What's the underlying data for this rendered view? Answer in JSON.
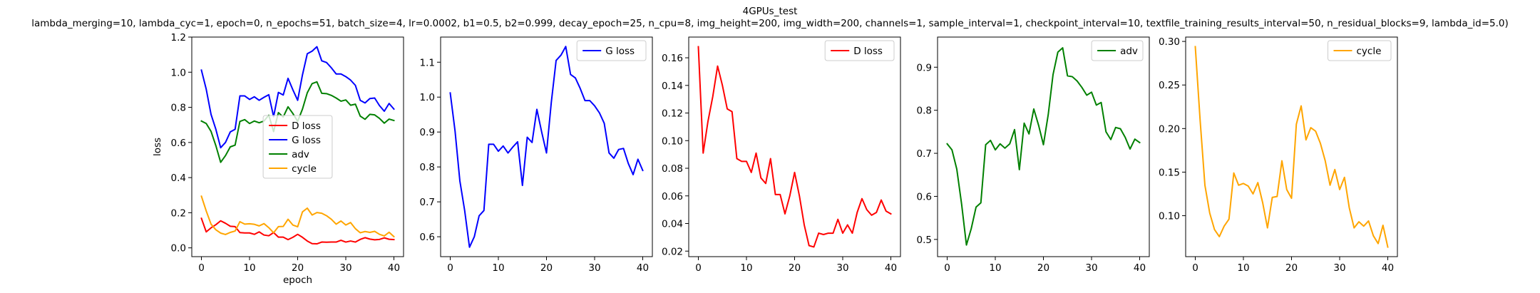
{
  "figure": {
    "title": "4GPUs_test",
    "subtitle": "lambda_merging=10, lambda_cyc=1, epoch=0, n_epochs=51, batch_size=4, lr=0.0002, b1=0.5, b2=0.999, decay_epoch=25, n_cpu=8, img_height=200, img_width=200, channels=1, sample_interval=1, checkpoint_interval=10, textfile_training_results_interval=50, n_residual_blocks=9, lambda_id=5.0)"
  },
  "colors": {
    "D loss": "#ff0000",
    "G loss": "#0000ff",
    "adv": "#008000",
    "cycle": "#ffa500"
  },
  "chart_data": [
    {
      "type": "line",
      "xlabel": "epoch",
      "ylabel": "loss",
      "xlim": [
        -2,
        42
      ],
      "ylim": [
        -0.05,
        1.2
      ],
      "xticks": [
        0,
        10,
        20,
        30,
        40
      ],
      "yticks": [
        0.0,
        0.2,
        0.4,
        0.6,
        0.8,
        1.0,
        1.2
      ],
      "ytick_labels": [
        "0.0",
        "0.2",
        "0.4",
        "0.6",
        "0.8",
        "1.0",
        "1.2"
      ],
      "legend": "center",
      "series": [
        {
          "name": "D loss",
          "ref": "D loss"
        },
        {
          "name": "G loss",
          "ref": "G loss"
        },
        {
          "name": "adv",
          "ref": "adv"
        },
        {
          "name": "cycle",
          "ref": "cycle"
        }
      ]
    },
    {
      "type": "line",
      "xlabel": "",
      "ylabel": "",
      "xlim": [
        -2,
        42
      ],
      "ylim": [
        0.543,
        1.172
      ],
      "xticks": [
        0,
        10,
        20,
        30,
        40
      ],
      "yticks": [
        0.6,
        0.7,
        0.8,
        0.9,
        1.0,
        1.1
      ],
      "ytick_labels": [
        "0.6",
        "0.7",
        "0.8",
        "0.9",
        "1.0",
        "1.1"
      ],
      "legend": "top-right",
      "series": [
        {
          "name": "G loss",
          "ref": "G loss"
        }
      ]
    },
    {
      "type": "line",
      "xlabel": "",
      "ylabel": "",
      "xlim": [
        -2,
        42
      ],
      "ylim": [
        0.016,
        0.175
      ],
      "xticks": [
        0,
        10,
        20,
        30,
        40
      ],
      "yticks": [
        0.02,
        0.04,
        0.06,
        0.08,
        0.1,
        0.12,
        0.14,
        0.16
      ],
      "ytick_labels": [
        "0.02",
        "0.04",
        "0.06",
        "0.08",
        "0.10",
        "0.12",
        "0.14",
        "0.16"
      ],
      "legend": "top-right",
      "series": [
        {
          "name": "D loss",
          "ref": "D loss"
        }
      ]
    },
    {
      "type": "line",
      "xlabel": "",
      "ylabel": "",
      "xlim": [
        -2,
        42
      ],
      "ylim": [
        0.46,
        0.97
      ],
      "xticks": [
        0,
        10,
        20,
        30,
        40
      ],
      "yticks": [
        0.5,
        0.6,
        0.7,
        0.8,
        0.9
      ],
      "ytick_labels": [
        "0.5",
        "0.6",
        "0.7",
        "0.8",
        "0.9"
      ],
      "legend": "top-right",
      "series": [
        {
          "name": "adv",
          "ref": "adv"
        }
      ]
    },
    {
      "type": "line",
      "xlabel": "",
      "ylabel": "",
      "xlim": [
        -2,
        42
      ],
      "ylim": [
        0.053,
        0.305
      ],
      "xticks": [
        0,
        10,
        20,
        30,
        40
      ],
      "yticks": [
        0.1,
        0.15,
        0.2,
        0.25,
        0.3
      ],
      "ytick_labels": [
        "0.10",
        "0.15",
        "0.20",
        "0.25",
        "0.30"
      ],
      "legend": "top-right",
      "series": [
        {
          "name": "cycle",
          "ref": "cycle"
        }
      ]
    }
  ],
  "series_values": {
    "x": [
      0,
      1,
      2,
      3,
      4,
      5,
      6,
      7,
      8,
      9,
      10,
      11,
      12,
      13,
      14,
      15,
      16,
      17,
      18,
      19,
      20,
      21,
      22,
      23,
      24,
      25,
      26,
      27,
      28,
      29,
      30,
      31,
      32,
      33,
      34,
      35,
      36,
      37,
      38,
      39,
      40
    ],
    "D loss": [
      0.168,
      0.091,
      0.114,
      0.132,
      0.154,
      0.14,
      0.123,
      0.121,
      0.087,
      0.085,
      0.085,
      0.077,
      0.091,
      0.073,
      0.069,
      0.087,
      0.061,
      0.061,
      0.047,
      0.06,
      0.077,
      0.06,
      0.039,
      0.024,
      0.023,
      0.033,
      0.032,
      0.033,
      0.033,
      0.043,
      0.033,
      0.039,
      0.033,
      0.048,
      0.058,
      0.05,
      0.046,
      0.048,
      0.057,
      0.049,
      0.047
    ],
    "G loss": [
      1.012,
      0.903,
      0.76,
      0.675,
      0.57,
      0.6,
      0.66,
      0.675,
      0.865,
      0.865,
      0.845,
      0.86,
      0.84,
      0.857,
      0.872,
      0.747,
      0.885,
      0.87,
      0.965,
      0.9,
      0.84,
      0.985,
      1.105,
      1.12,
      1.145,
      1.065,
      1.055,
      1.025,
      0.99,
      0.99,
      0.975,
      0.955,
      0.925,
      0.84,
      0.825,
      0.85,
      0.853,
      0.81,
      0.778,
      0.822,
      0.79
    ],
    "adv": [
      0.722,
      0.708,
      0.663,
      0.582,
      0.487,
      0.525,
      0.575,
      0.585,
      0.72,
      0.73,
      0.708,
      0.722,
      0.712,
      0.722,
      0.755,
      0.662,
      0.77,
      0.745,
      0.803,
      0.765,
      0.72,
      0.79,
      0.883,
      0.935,
      0.945,
      0.88,
      0.878,
      0.868,
      0.853,
      0.835,
      0.842,
      0.812,
      0.818,
      0.75,
      0.732,
      0.76,
      0.757,
      0.737,
      0.71,
      0.733,
      0.725
    ],
    "cycle": [
      0.294,
      0.21,
      0.135,
      0.103,
      0.084,
      0.076,
      0.088,
      0.096,
      0.149,
      0.135,
      0.137,
      0.134,
      0.125,
      0.138,
      0.115,
      0.086,
      0.121,
      0.122,
      0.163,
      0.13,
      0.12,
      0.205,
      0.226,
      0.187,
      0.201,
      0.197,
      0.183,
      0.163,
      0.135,
      0.153,
      0.13,
      0.144,
      0.109,
      0.086,
      0.093,
      0.088,
      0.094,
      0.077,
      0.068,
      0.089,
      0.064
    ]
  }
}
